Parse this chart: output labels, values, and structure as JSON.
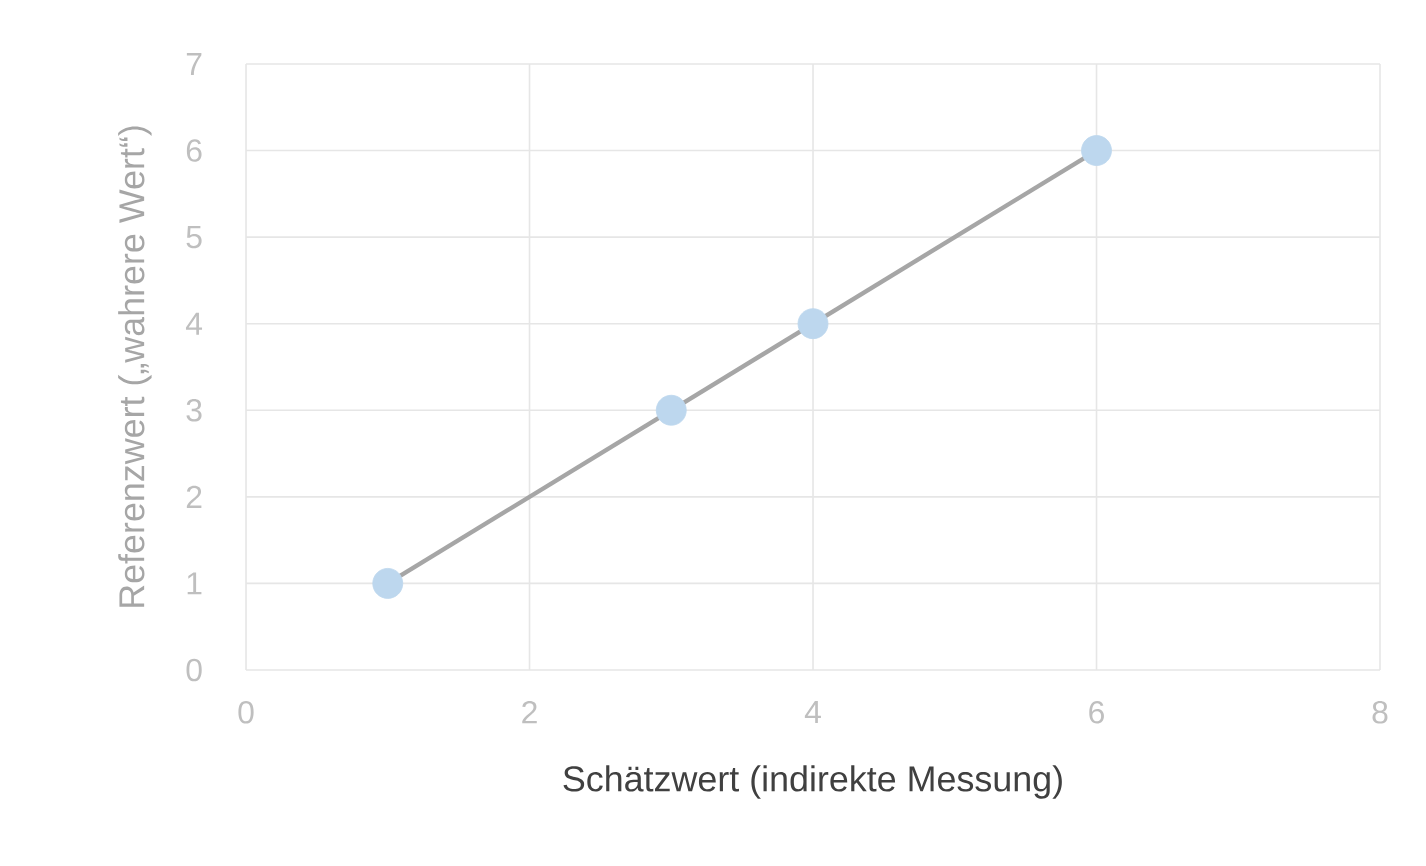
{
  "chart_data": {
    "type": "scatter",
    "xlabel": "Schätzwert (indirekte Messung)",
    "ylabel": "Referenzwert („wahrere Wert“)",
    "series": [
      {
        "color": "#bdd7ee",
        "x": [
          1,
          3,
          4,
          6
        ],
        "values": [
          1,
          3,
          4,
          6
        ],
        "marker": "circle"
      },
      {
        "type": "line",
        "color": "#a6a6a6",
        "x": [
          1,
          6
        ],
        "values": [
          1,
          6
        ],
        "marker": "none"
      }
    ],
    "xlim": [
      0,
      8
    ],
    "ylim": [
      0,
      7
    ],
    "xticks": [
      0,
      2,
      4,
      6,
      8
    ],
    "yticks": [
      0,
      1,
      2,
      3,
      4,
      5,
      6,
      7
    ],
    "grid": true
  }
}
